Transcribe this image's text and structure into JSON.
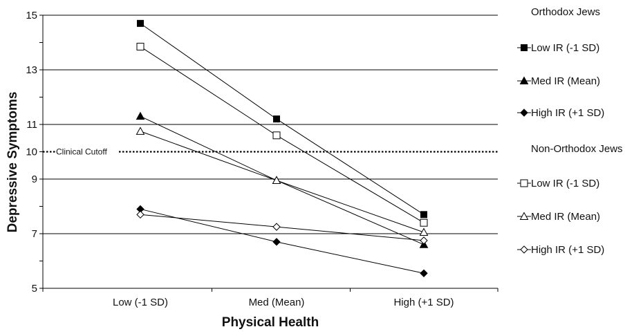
{
  "chart_data": {
    "type": "line",
    "xlabel": "Physical Health",
    "ylabel": "Depressive Symptoms",
    "categories": [
      "Low (-1 SD)",
      "Med (Mean)",
      "High (+1 SD)"
    ],
    "ylim": [
      5,
      15
    ],
    "yticks": [
      5,
      7,
      9,
      10,
      11,
      13,
      15
    ],
    "gridlines": [
      7,
      9,
      11,
      13,
      15
    ],
    "reference_line": {
      "label": "Clinical Cutoff",
      "value": 10,
      "style": "dotted"
    },
    "legend_position": "right",
    "groups": [
      {
        "name": "Orthodox Jews",
        "series": [
          0,
          1,
          2
        ]
      },
      {
        "name": "Non-Orthodox Jews",
        "series": [
          3,
          4,
          5
        ]
      }
    ],
    "series": [
      {
        "name": "Low IR (-1 SD)",
        "marker": "square",
        "filled": true,
        "values": [
          14.7,
          11.2,
          7.7
        ]
      },
      {
        "name": "Med IR (Mean)",
        "marker": "triangle",
        "filled": true,
        "values": [
          11.3,
          8.95,
          6.6
        ]
      },
      {
        "name": "High IR (+1 SD)",
        "marker": "diamond",
        "filled": true,
        "values": [
          7.9,
          6.7,
          5.55
        ]
      },
      {
        "name": "Low IR (-1 SD)",
        "marker": "square",
        "filled": false,
        "values": [
          13.85,
          10.6,
          7.4
        ]
      },
      {
        "name": "Med IR (Mean)",
        "marker": "triangle",
        "filled": false,
        "values": [
          10.75,
          8.95,
          7.05
        ]
      },
      {
        "name": "High IR (+1 SD)",
        "marker": "diamond",
        "filled": false,
        "values": [
          7.7,
          7.25,
          6.75
        ]
      }
    ]
  }
}
